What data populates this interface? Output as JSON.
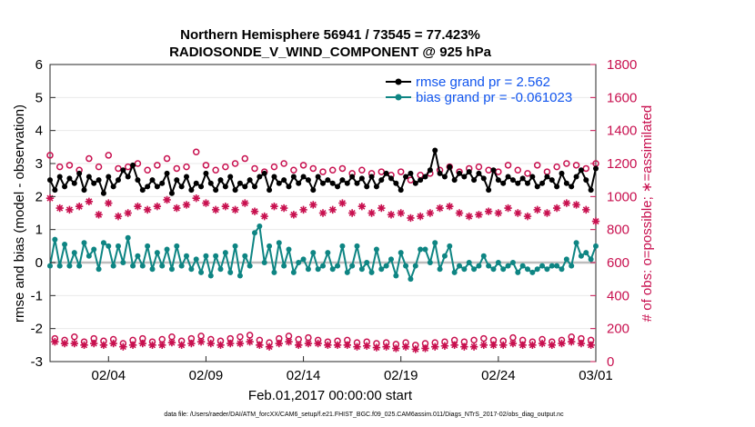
{
  "colors": {
    "rmse": "#000000",
    "bias": "#0e8583",
    "counts": "#c8104f",
    "legend_text": "#1155ee",
    "zero_line": "#bdbdbd"
  },
  "chart_data": {
    "type": "line",
    "title_line1": "Northern Hemisphere 56941 / 73545 = 77.423%",
    "title_line2": "RADIOSONDE_V_WIND_COMPONENT @ 925 hPa",
    "xlabel": "Feb.01,2017 00:00:00 start",
    "ylabel_left": "rmse and bias (model - observation)",
    "ylabel_right": "# of obs: o=possible; ∗=assimilated",
    "xlim": [
      1,
      29
    ],
    "ylim_left": [
      -3,
      6
    ],
    "ylim_right": [
      0,
      1800
    ],
    "x_ticks": [
      4,
      9,
      14,
      19,
      24,
      29
    ],
    "x_tick_labels": [
      "02/04",
      "02/09",
      "02/14",
      "02/19",
      "02/24",
      "03/01"
    ],
    "y_ticks_left": [
      -3,
      -2,
      -1,
      0,
      1,
      2,
      3,
      4,
      5,
      6
    ],
    "y_tick_labels_left": [
      "-3",
      "-2",
      "-1",
      "0",
      "1",
      "2",
      "3",
      "4",
      "5",
      "6"
    ],
    "y_ticks_right": [
      0,
      200,
      400,
      600,
      800,
      1000,
      1200,
      1400,
      1600,
      1800
    ],
    "y_tick_labels_right": [
      "0",
      "200",
      "400",
      "600",
      "800",
      "1000",
      "1200",
      "1400",
      "1600",
      "1800"
    ],
    "legend": [
      {
        "name": "rmse",
        "label": "rmse grand pr = 2.562"
      },
      {
        "name": "bias",
        "label": "bias grand pr = -0.061023"
      }
    ],
    "footnote": "data file: /Users/raeder/DAI/ATM_forcXX/CAM6_setup/f.e21.FHIST_BGC.f09_025.CAM6assim.011/Diags_NTrS_2017-02/obs_diag_output.nc",
    "x": [
      1.0,
      1.25,
      1.5,
      1.75,
      2.0,
      2.25,
      2.5,
      2.75,
      3.0,
      3.25,
      3.5,
      3.75,
      4.0,
      4.25,
      4.5,
      4.75,
      5.0,
      5.25,
      5.5,
      5.75,
      6.0,
      6.25,
      6.5,
      6.75,
      7.0,
      7.25,
      7.5,
      7.75,
      8.0,
      8.25,
      8.5,
      8.75,
      9.0,
      9.25,
      9.5,
      9.75,
      10.0,
      10.25,
      10.5,
      10.75,
      11.0,
      11.25,
      11.5,
      11.75,
      12.0,
      12.25,
      12.5,
      12.75,
      13.0,
      13.25,
      13.5,
      13.75,
      14.0,
      14.25,
      14.5,
      14.75,
      15.0,
      15.25,
      15.5,
      15.75,
      16.0,
      16.25,
      16.5,
      16.75,
      17.0,
      17.25,
      17.5,
      17.75,
      18.0,
      18.25,
      18.5,
      18.75,
      19.0,
      19.25,
      19.5,
      19.75,
      20.0,
      20.25,
      20.5,
      20.75,
      21.0,
      21.25,
      21.5,
      21.75,
      22.0,
      22.25,
      22.5,
      22.75,
      23.0,
      23.25,
      23.5,
      23.75,
      24.0,
      24.25,
      24.5,
      24.75,
      25.0,
      25.25,
      25.5,
      25.75,
      26.0,
      26.25,
      26.5,
      26.75,
      27.0,
      27.25,
      27.5,
      27.75,
      28.0,
      28.25,
      28.5,
      28.75,
      29.0
    ],
    "series": [
      {
        "name": "rmse",
        "axis": "left",
        "marker": "dot",
        "values": [
          2.5,
          2.2,
          2.6,
          2.3,
          2.55,
          2.4,
          2.7,
          2.2,
          2.6,
          2.4,
          2.5,
          2.1,
          2.6,
          2.3,
          2.5,
          2.8,
          2.6,
          2.95,
          2.5,
          2.2,
          2.3,
          2.5,
          2.3,
          2.4,
          2.7,
          2.1,
          2.5,
          2.3,
          2.6,
          2.2,
          2.4,
          2.3,
          2.7,
          2.4,
          2.2,
          2.5,
          2.3,
          2.6,
          2.2,
          2.4,
          2.3,
          2.5,
          2.3,
          2.6,
          2.7,
          2.2,
          2.6,
          2.4,
          2.5,
          2.3,
          2.6,
          2.4,
          2.6,
          2.5,
          2.2,
          2.6,
          2.4,
          2.5,
          2.4,
          2.3,
          2.5,
          2.4,
          2.6,
          2.4,
          2.55,
          2.3,
          2.6,
          2.3,
          2.5,
          2.7,
          2.55,
          2.4,
          2.2,
          2.6,
          2.7,
          2.4,
          2.5,
          2.6,
          2.8,
          3.4,
          2.7,
          2.6,
          2.9,
          2.5,
          2.7,
          2.6,
          2.75,
          2.5,
          2.7,
          2.55,
          2.2,
          2.8,
          2.5,
          2.4,
          2.6,
          2.5,
          2.4,
          2.55,
          2.4,
          2.6,
          2.3,
          2.4,
          2.6,
          2.5,
          2.3,
          2.7,
          2.4,
          2.3,
          2.6,
          2.8,
          2.5,
          2.2,
          2.85
        ]
      },
      {
        "name": "bias",
        "axis": "left",
        "marker": "dot",
        "values": [
          -0.1,
          0.7,
          -0.1,
          0.55,
          -0.1,
          0.3,
          -0.1,
          0.6,
          0.2,
          0.4,
          -0.2,
          0.6,
          0.5,
          -0.1,
          0.5,
          0.0,
          0.75,
          -0.1,
          0.2,
          -0.1,
          0.5,
          -0.2,
          0.3,
          -0.1,
          0.4,
          -0.2,
          0.5,
          -0.1,
          0.2,
          -0.2,
          0.1,
          -0.3,
          0.2,
          -0.4,
          0.2,
          -0.2,
          0.3,
          -0.3,
          0.5,
          -0.4,
          0.2,
          -0.1,
          0.9,
          1.1,
          0.0,
          0.5,
          -0.3,
          0.6,
          -0.1,
          0.4,
          -0.3,
          0.0,
          0.1,
          -0.2,
          0.3,
          -0.2,
          -0.1,
          0.3,
          -0.2,
          -0.1,
          0.5,
          -0.3,
          -0.1,
          0.5,
          -0.2,
          0.0,
          -0.3,
          0.4,
          -0.2,
          -0.1,
          0.1,
          -0.4,
          0.3,
          -0.1,
          -0.5,
          -0.1,
          0.4,
          0.4,
          0.0,
          0.6,
          -0.2,
          0.2,
          0.5,
          -0.3,
          -0.1,
          -0.2,
          0.0,
          -0.2,
          -0.1,
          0.2,
          -0.1,
          -0.2,
          0.0,
          -0.2,
          -0.1,
          0.0,
          -0.3,
          -0.1,
          -0.2,
          -0.3,
          -0.2,
          -0.1,
          -0.2,
          -0.1,
          -0.1,
          -0.2,
          0.1,
          -0.1,
          0.6,
          0.2,
          0.3,
          0.1,
          0.5
        ]
      },
      {
        "name": "possible",
        "axis": "right",
        "marker": "circle",
        "values": [
          1250,
          140,
          1180,
          130,
          1190,
          150,
          1160,
          120,
          1230,
          140,
          1180,
          125,
          1250,
          135,
          1170,
          110,
          1180,
          130,
          1200,
          140,
          1160,
          120,
          1190,
          135,
          1230,
          150,
          1170,
          125,
          1180,
          140,
          1270,
          155,
          1190,
          135,
          1160,
          125,
          1180,
          140,
          1200,
          150,
          1230,
          160,
          1170,
          130,
          1150,
          115,
          1180,
          140,
          1200,
          155,
          1160,
          135,
          1190,
          145,
          1170,
          130,
          1150,
          120,
          1160,
          125,
          1170,
          130,
          1140,
          115,
          1160,
          120,
          1140,
          110,
          1150,
          115,
          1130,
          105,
          1150,
          115,
          1100,
          100,
          1130,
          110,
          1140,
          115,
          1160,
          120,
          1180,
          130,
          1150,
          120,
          1170,
          130,
          1180,
          140,
          1160,
          130,
          1150,
          125,
          1190,
          145,
          1160,
          130,
          1140,
          120,
          1190,
          135,
          1150,
          120,
          1180,
          130,
          1200,
          150,
          1190,
          140,
          1170,
          130,
          1200
        ]
      },
      {
        "name": "assimilated",
        "axis": "right",
        "marker": "asterisk",
        "values": [
          990,
          120,
          930,
          110,
          920,
          110,
          940,
          100,
          970,
          110,
          890,
          100,
          960,
          110,
          880,
          90,
          900,
          100,
          940,
          110,
          920,
          100,
          940,
          100,
          980,
          115,
          930,
          100,
          950,
          110,
          990,
          120,
          960,
          110,
          920,
          100,
          940,
          110,
          920,
          110,
          960,
          120,
          910,
          100,
          880,
          90,
          940,
          110,
          930,
          120,
          890,
          100,
          920,
          110,
          950,
          110,
          900,
          100,
          920,
          100,
          960,
          100,
          900,
          90,
          940,
          95,
          900,
          85,
          930,
          90,
          890,
          80,
          900,
          90,
          870,
          75,
          880,
          80,
          900,
          90,
          930,
          95,
          940,
          100,
          900,
          90,
          880,
          90,
          890,
          100,
          910,
          100,
          900,
          100,
          930,
          110,
          900,
          100,
          880,
          100,
          920,
          110,
          900,
          100,
          930,
          110,
          960,
          120,
          950,
          110,
          920,
          100,
          850
        ]
      }
    ]
  }
}
